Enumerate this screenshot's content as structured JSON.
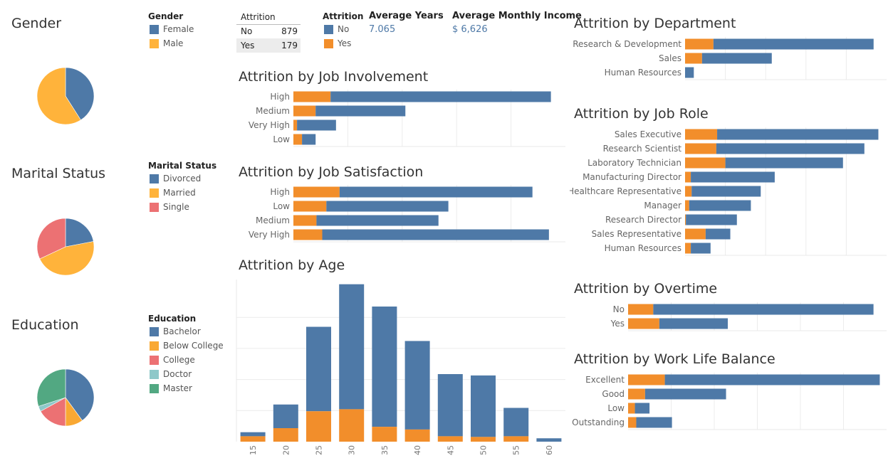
{
  "colors": {
    "no": "#4e79a7",
    "yes": "#f28e2b",
    "divorced": "#4e79a7",
    "married": "#ffb33b",
    "single": "#ec7173",
    "bachelor": "#4e79a7",
    "below_college": "#f9a833",
    "college": "#ec7173",
    "doctor": "#8ec8c9",
    "master": "#52a882",
    "gridline": "#ececec"
  },
  "gender": {
    "title": "Gender",
    "legend_title": "Gender",
    "legend": [
      {
        "label": "Female",
        "color": "#4e79a7"
      },
      {
        "label": "Male",
        "color": "#ffb33b"
      }
    ]
  },
  "marital": {
    "title": "Marital Status",
    "legend_title": "Marital Status",
    "legend": [
      {
        "label": "Divorced",
        "color": "#4e79a7"
      },
      {
        "label": "Married",
        "color": "#ffb33b"
      },
      {
        "label": "Single",
        "color": "#ec7173"
      }
    ]
  },
  "education": {
    "title": "Education",
    "legend_title": "Education",
    "legend": [
      {
        "label": "Bachelor",
        "color": "#4e79a7"
      },
      {
        "label": "Below College",
        "color": "#f9a833"
      },
      {
        "label": "College",
        "color": "#ec7173"
      },
      {
        "label": "Doctor",
        "color": "#8ec8c9"
      },
      {
        "label": "Master",
        "color": "#52a882"
      }
    ]
  },
  "attrition_table": {
    "header": "Attrition",
    "rows": [
      {
        "label": "No",
        "value": "879"
      },
      {
        "label": "Yes",
        "value": "179"
      }
    ]
  },
  "attrition_legend": {
    "title": "Attrition",
    "items": [
      {
        "label": "No",
        "color": "#4e79a7"
      },
      {
        "label": "Yes",
        "color": "#f28e2b"
      }
    ]
  },
  "kpi": {
    "avg_years_label": "Average Years",
    "avg_years_value": "7.065",
    "avg_income_label": "Average Monthly Income",
    "avg_income_value": "$ 6,626"
  },
  "chart_data": [
    {
      "id": "gender",
      "type": "pie",
      "title": "Gender",
      "categories": [
        "Female",
        "Male"
      ],
      "values": [
        41,
        59
      ],
      "colors": [
        "#4e79a7",
        "#ffb33b"
      ]
    },
    {
      "id": "marital",
      "type": "pie",
      "title": "Marital Status",
      "categories": [
        "Divorced",
        "Married",
        "Single"
      ],
      "values": [
        22,
        46,
        32
      ],
      "colors": [
        "#4e79a7",
        "#ffb33b",
        "#ec7173"
      ]
    },
    {
      "id": "education",
      "type": "pie",
      "title": "Education",
      "categories": [
        "Bachelor",
        "Below College",
        "College",
        "Doctor",
        "Master"
      ],
      "values": [
        40,
        10,
        17,
        3,
        30
      ],
      "colors": [
        "#4e79a7",
        "#f9a833",
        "#ec7173",
        "#8ec8c9",
        "#52a882"
      ]
    },
    {
      "id": "job_involvement",
      "type": "bar",
      "orientation": "horizontal",
      "stacked": true,
      "title": "Attrition by Job Involvement",
      "categories": [
        "High",
        "Medium",
        "Very High",
        "Low"
      ],
      "series": [
        {
          "name": "Yes",
          "values": [
            82,
            49,
            8,
            19
          ]
        },
        {
          "name": "No",
          "values": [
            486,
            198,
            86,
            30
          ]
        }
      ],
      "xlim": [
        0,
        600
      ],
      "grid": true
    },
    {
      "id": "job_satisfaction",
      "type": "bar",
      "orientation": "horizontal",
      "stacked": true,
      "title": "Attrition by Job Satisfaction",
      "categories": [
        "High",
        "Low",
        "Medium",
        "Very High"
      ],
      "series": [
        {
          "name": "Yes",
          "values": [
            56,
            40,
            28,
            35
          ]
        },
        {
          "name": "No",
          "values": [
            234,
            148,
            148,
            275
          ]
        }
      ],
      "xlim": [
        0,
        330
      ],
      "grid": true
    },
    {
      "id": "age",
      "type": "bar",
      "orientation": "vertical",
      "stacked": true,
      "title": "Attrition by Age",
      "categories": [
        "15",
        "20",
        "25",
        "30",
        "35",
        "40",
        "45",
        "50",
        "55",
        "60"
      ],
      "series": [
        {
          "name": "Yes",
          "values": [
            8,
            20,
            45,
            48,
            22,
            18,
            8,
            7,
            8,
            0
          ]
        },
        {
          "name": "No",
          "values": [
            6,
            35,
            125,
            185,
            178,
            131,
            92,
            91,
            42,
            5
          ]
        }
      ],
      "ylim": [
        0,
        240
      ],
      "grid": true
    },
    {
      "id": "department",
      "type": "bar",
      "orientation": "horizontal",
      "stacked": true,
      "title": "Attrition by Department",
      "categories": [
        "Research & Development",
        "Sales",
        "Human Resources"
      ],
      "series": [
        {
          "name": "Yes",
          "values": [
            107,
            64,
            0
          ]
        },
        {
          "name": "No",
          "values": [
            604,
            263,
            33
          ]
        }
      ],
      "xlim": [
        0,
        760
      ],
      "grid": true
    },
    {
      "id": "job_role",
      "type": "bar",
      "orientation": "horizontal",
      "stacked": true,
      "title": "Attrition by Job Role",
      "categories": [
        "Sales Executive",
        "Research Scientist",
        "Laboratory Technician",
        "Manufacturing Director",
        "Healthcare Representative",
        "Manager",
        "Research Director",
        "Sales Representative",
        "Human Resources"
      ],
      "series": [
        {
          "name": "Yes",
          "values": [
            39,
            38,
            49,
            7,
            8,
            5,
            1,
            25,
            7
          ]
        },
        {
          "name": "No",
          "values": [
            196,
            180,
            143,
            102,
            84,
            75,
            62,
            30,
            24
          ]
        }
      ],
      "xlim": [
        0,
        245
      ],
      "grid": true
    },
    {
      "id": "overtime",
      "type": "bar",
      "orientation": "horizontal",
      "stacked": true,
      "title": "Attrition by Overtime",
      "categories": [
        "No",
        "Yes"
      ],
      "series": [
        {
          "name": "Yes",
          "values": [
            75,
            93
          ]
        },
        {
          "name": "No",
          "values": [
            656,
            204
          ]
        }
      ],
      "xlim": [
        0,
        770
      ],
      "grid": true
    },
    {
      "id": "work_life_balance",
      "type": "bar",
      "orientation": "horizontal",
      "stacked": true,
      "title": "Attrition by Work Life Balance",
      "categories": [
        "Excellent",
        "Good",
        "Low",
        "Outstanding"
      ],
      "series": [
        {
          "name": "Yes",
          "values": [
            108,
            50,
            20,
            24
          ]
        },
        {
          "name": "No",
          "values": [
            632,
            238,
            43,
            105
          ]
        }
      ],
      "xlim": [
        0,
        760
      ],
      "grid": true
    }
  ]
}
